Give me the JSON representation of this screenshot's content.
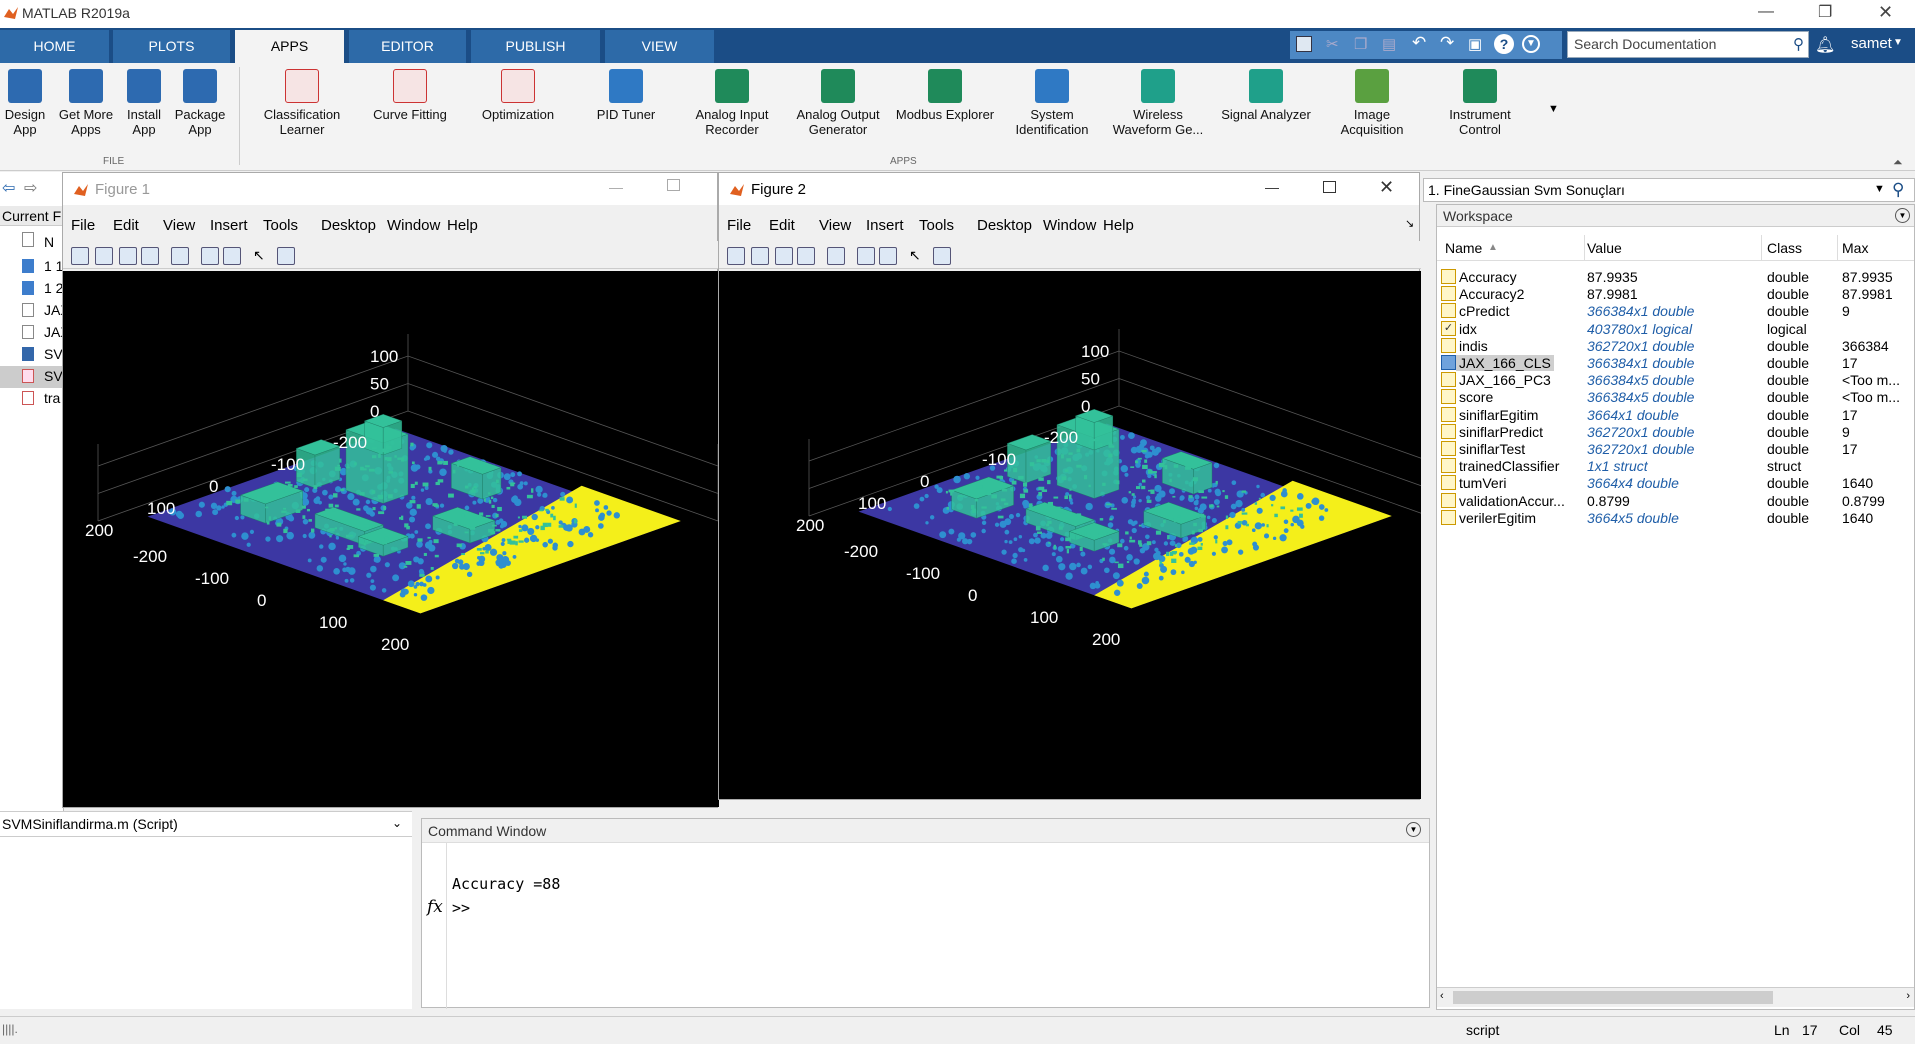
{
  "window": {
    "title": "MATLAB R2019a"
  },
  "tabs": [
    {
      "label": "HOME"
    },
    {
      "label": "PLOTS"
    },
    {
      "label": "APPS"
    },
    {
      "label": "EDITOR"
    },
    {
      "label": "PUBLISH"
    },
    {
      "label": "VIEW"
    }
  ],
  "search": {
    "placeholder": "Search Documentation"
  },
  "user": "samet",
  "ribbon": {
    "file_apps": [
      {
        "label": "Design App"
      },
      {
        "label": "Get More Apps"
      },
      {
        "label": "Install App"
      },
      {
        "label": "Package App"
      }
    ],
    "apps": [
      {
        "label": "Classification Learner"
      },
      {
        "label": "Curve Fitting"
      },
      {
        "label": "Optimization"
      },
      {
        "label": "PID Tuner"
      },
      {
        "label": "Analog Input Recorder"
      },
      {
        "label": "Analog Output Generator"
      },
      {
        "label": "Modbus Explorer"
      },
      {
        "label": "System Identification"
      },
      {
        "label": "Wireless Waveform Ge..."
      },
      {
        "label": "Signal Analyzer"
      },
      {
        "label": "Image Acquisition"
      },
      {
        "label": "Instrument Control"
      }
    ],
    "group_file": "FILE",
    "group_apps": "APPS"
  },
  "current_folder": {
    "label": "Current F",
    "header": "N",
    "items": [
      "1 1",
      "1 2",
      "JAX",
      "JAX",
      "SV",
      "SV",
      "tra"
    ]
  },
  "figure1": {
    "title": "Figure 1",
    "menu": [
      "File",
      "Edit",
      "View",
      "Insert",
      "Tools",
      "Desktop",
      "Window",
      "Help"
    ],
    "zticks": [
      "100",
      "50",
      "0"
    ],
    "yticks": [
      "200",
      "100",
      "0",
      "-100",
      "-200"
    ],
    "xticks": [
      "-200",
      "-100",
      "0",
      "100",
      "200"
    ]
  },
  "figure2": {
    "title": "Figure 2",
    "menu": [
      "File",
      "Edit",
      "View",
      "Insert",
      "Tools",
      "Desktop",
      "Window",
      "Help"
    ],
    "zticks": [
      "100",
      "50",
      "0"
    ],
    "yticks": [
      "200",
      "100",
      "0",
      "-100",
      "-200"
    ],
    "xticks": [
      "-200",
      "-100",
      "0",
      "100",
      "200"
    ]
  },
  "editor": {
    "file": "SVMSiniflandirma.m  (Script)"
  },
  "command_window": {
    "title": "Command Window",
    "output": "Accuracy =88",
    "prompt": ">>",
    "fx": "fx"
  },
  "results_panel": {
    "selected": "1. FineGaussian Svm Sonuçları"
  },
  "workspace": {
    "title": "Workspace",
    "columns": [
      "Name",
      "Value",
      "Class",
      "Max"
    ],
    "rows": [
      {
        "name": "Accuracy",
        "value": "87.9935",
        "class": "double",
        "max": "87.9935",
        "italic": false,
        "icon": "grid"
      },
      {
        "name": "Accuracy2",
        "value": "87.9981",
        "class": "double",
        "max": "87.9981",
        "italic": false,
        "icon": "grid"
      },
      {
        "name": "cPredict",
        "value": "366384x1 double",
        "class": "double",
        "max": "9",
        "italic": true,
        "icon": "grid"
      },
      {
        "name": "idx",
        "value": "403780x1 logical",
        "class": "logical",
        "max": "",
        "italic": true,
        "icon": "check"
      },
      {
        "name": "indis",
        "value": "362720x1 double",
        "class": "double",
        "max": "366384",
        "italic": true,
        "icon": "grid"
      },
      {
        "name": "JAX_166_CLS",
        "value": "366384x1 double",
        "class": "double",
        "max": "17",
        "italic": true,
        "icon": "blue"
      },
      {
        "name": "JAX_166_PC3",
        "value": "366384x5 double",
        "class": "double",
        "max": "<Too m...",
        "italic": true,
        "icon": "grid"
      },
      {
        "name": "score",
        "value": "366384x5 double",
        "class": "double",
        "max": "<Too m...",
        "italic": true,
        "icon": "grid"
      },
      {
        "name": "siniflarEgitim",
        "value": "3664x1 double",
        "class": "double",
        "max": "17",
        "italic": true,
        "icon": "grid"
      },
      {
        "name": "siniflarPredict",
        "value": "362720x1 double",
        "class": "double",
        "max": "9",
        "italic": true,
        "icon": "grid"
      },
      {
        "name": "siniflarTest",
        "value": "362720x1 double",
        "class": "double",
        "max": "17",
        "italic": true,
        "icon": "grid"
      },
      {
        "name": "trainedClassifier",
        "value": "1x1 struct",
        "class": "struct",
        "max": "",
        "italic": true,
        "icon": "struct"
      },
      {
        "name": "tumVeri",
        "value": "3664x4 double",
        "class": "double",
        "max": "1640",
        "italic": true,
        "icon": "grid"
      },
      {
        "name": "validationAccur...",
        "value": "0.8799",
        "class": "double",
        "max": "0.8799",
        "italic": false,
        "icon": "grid"
      },
      {
        "name": "verilerEgitim",
        "value": "3664x5 double",
        "class": "double",
        "max": "1640",
        "italic": true,
        "icon": "grid"
      }
    ]
  },
  "statusbar": {
    "mode": "script",
    "ln_label": "Ln",
    "ln": "17",
    "col_label": "Col",
    "col": "45"
  },
  "colors": {
    "tabbar": "#1b4d86",
    "tab": "#2d6aa8",
    "accent": "#1f5ea8",
    "plot_bg": "#000000",
    "class_yellow": "#f4ef1a",
    "class_teal": "#33c19a",
    "class_blue": "#3c37a3",
    "class_lightblue": "#2e8fd0"
  }
}
